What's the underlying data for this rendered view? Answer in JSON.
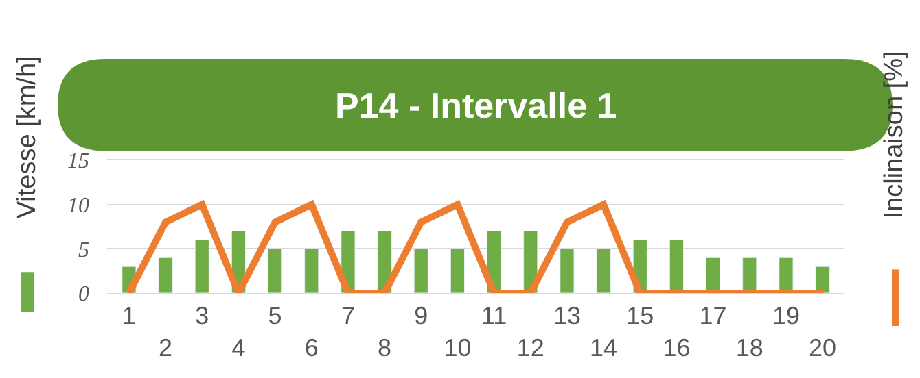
{
  "chart_data": {
    "type": "bar",
    "title": "P14 - Intervalle 1",
    "ylabel": "Vitesse [km/h]",
    "y2label": "Inclinaison [%]",
    "categories": [
      "1",
      "2",
      "3",
      "4",
      "5",
      "6",
      "7",
      "8",
      "9",
      "10",
      "11",
      "12",
      "13",
      "14",
      "15",
      "16",
      "17",
      "18",
      "19",
      "20"
    ],
    "series": [
      {
        "color": "#70ad47",
        "values": [
          3,
          4,
          6,
          7,
          5,
          5,
          7,
          7,
          5,
          5,
          7,
          7,
          5,
          5,
          6,
          6,
          4,
          4,
          4,
          3
        ]
      },
      {
        "type": "line",
        "color": "#ed7d31",
        "values": [
          0,
          8,
          10,
          0,
          8,
          10,
          0,
          0,
          8,
          10,
          0,
          0,
          8,
          10,
          0,
          0,
          0,
          0,
          0,
          0
        ]
      }
    ],
    "ylim": [
      0,
      15
    ],
    "yticks": [
      0,
      5,
      10,
      15
    ],
    "grid": "y",
    "marker": "none",
    "line_style": "solid"
  }
}
